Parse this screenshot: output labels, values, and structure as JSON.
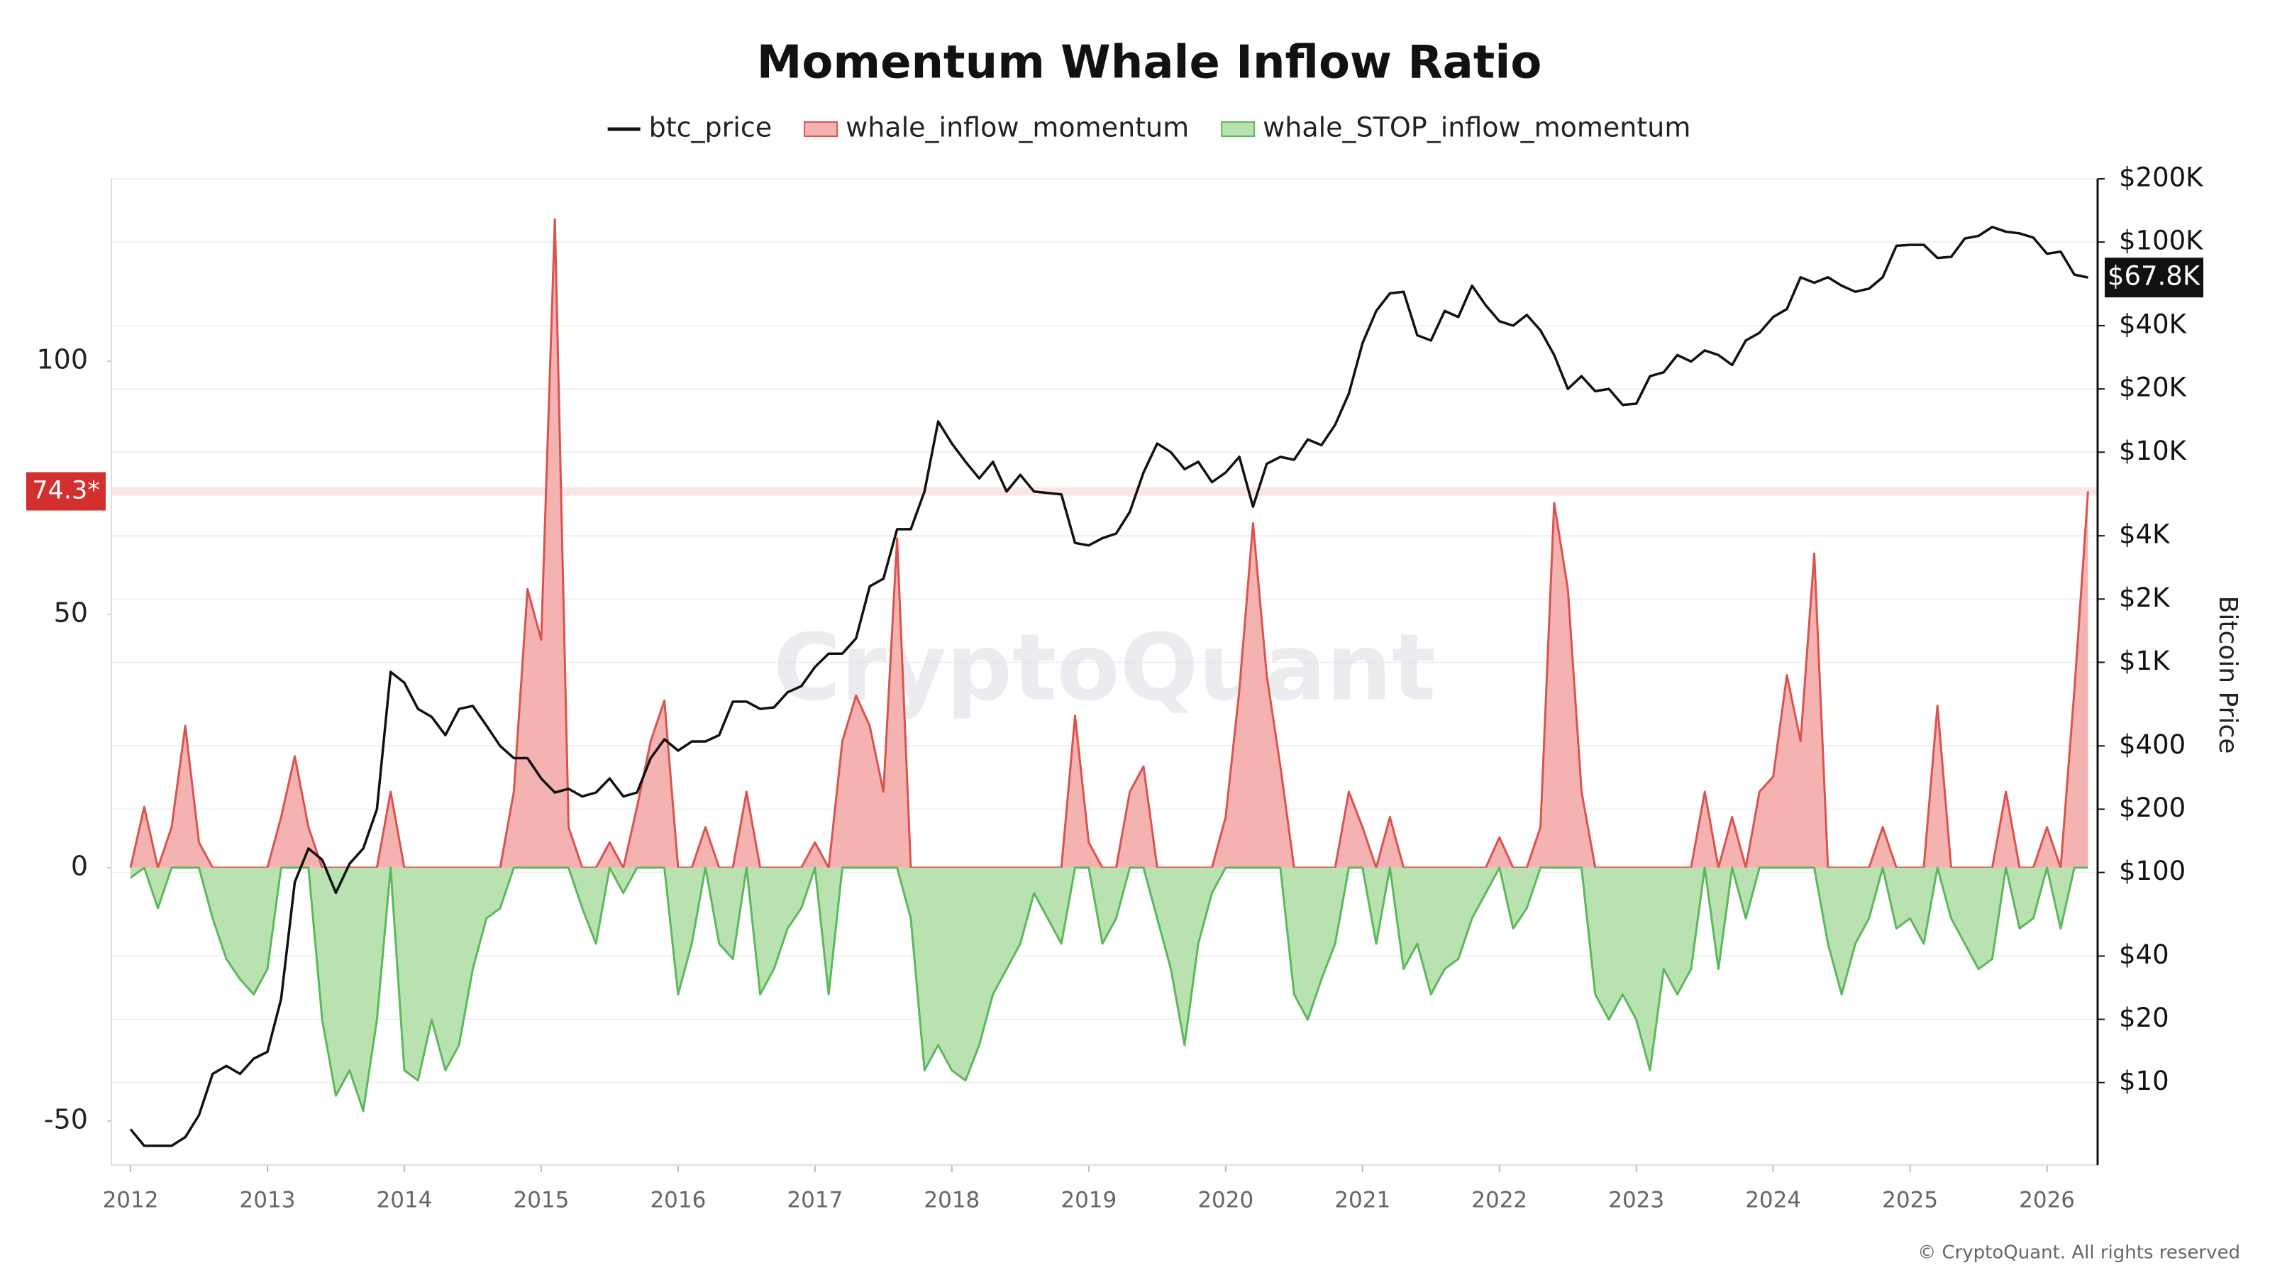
{
  "chart_data": {
    "type": "area-line",
    "title": "Momentum Whale Inflow Ratio",
    "y2label": "Bitcoin Price",
    "watermark": "CryptoQuant",
    "copyright": "© CryptoQuant. All rights reserved",
    "x": [
      2012,
      2012.1,
      2012.2,
      2012.3,
      2012.4,
      2012.5,
      2012.6,
      2012.7,
      2012.8,
      2012.9,
      2013,
      2013.1,
      2013.2,
      2013.3,
      2013.4,
      2013.5,
      2013.6,
      2013.7,
      2013.8,
      2013.9,
      2014,
      2014.1,
      2014.2,
      2014.3,
      2014.4,
      2014.5,
      2014.6,
      2014.7,
      2014.8,
      2014.9,
      2015,
      2015.1,
      2015.2,
      2015.3,
      2015.4,
      2015.5,
      2015.6,
      2015.7,
      2015.8,
      2015.9,
      2016,
      2016.1,
      2016.2,
      2016.3,
      2016.4,
      2016.5,
      2016.6,
      2016.7,
      2016.8,
      2016.9,
      2017,
      2017.1,
      2017.2,
      2017.3,
      2017.4,
      2017.5,
      2017.6,
      2017.7,
      2017.8,
      2017.9,
      2018,
      2018.1,
      2018.2,
      2018.3,
      2018.4,
      2018.5,
      2018.6,
      2018.7,
      2018.8,
      2018.9,
      2019,
      2019.1,
      2019.2,
      2019.3,
      2019.4,
      2019.5,
      2019.6,
      2019.7,
      2019.8,
      2019.9,
      2020,
      2020.1,
      2020.2,
      2020.3,
      2020.4,
      2020.5,
      2020.6,
      2020.7,
      2020.8,
      2020.9,
      2021,
      2021.1,
      2021.2,
      2021.3,
      2021.4,
      2021.5,
      2021.6,
      2021.7,
      2021.8,
      2021.9,
      2022,
      2022.1,
      2022.2,
      2022.3,
      2022.4,
      2022.5,
      2022.6,
      2022.7,
      2022.8,
      2022.9,
      2023,
      2023.1,
      2023.2,
      2023.3,
      2023.4,
      2023.5,
      2023.6,
      2023.7,
      2023.8,
      2023.9,
      2024,
      2024.1,
      2024.2,
      2024.3,
      2024.4,
      2024.5,
      2024.6,
      2024.7,
      2024.8,
      2024.9,
      2025,
      2025.1,
      2025.2,
      2025.3,
      2025.4,
      2025.5,
      2025.6,
      2025.7,
      2025.8,
      2025.9,
      2026,
      2026.1,
      2026.2,
      2026.3
    ],
    "series": [
      {
        "name": "btc_price",
        "color": "#111111",
        "axis": "y2",
        "style": "line",
        "values": [
          6,
          5,
          5,
          5,
          5.5,
          7,
          11,
          12,
          11,
          13,
          14,
          25,
          90,
          130,
          115,
          80,
          110,
          130,
          200,
          900,
          800,
          600,
          550,
          450,
          600,
          620,
          500,
          400,
          350,
          350,
          280,
          240,
          250,
          230,
          240,
          280,
          230,
          240,
          350,
          430,
          380,
          420,
          420,
          450,
          650,
          650,
          600,
          610,
          720,
          770,
          950,
          1100,
          1100,
          1300,
          2300,
          2500,
          4300,
          4300,
          6500,
          14000,
          11000,
          9000,
          7500,
          9000,
          6500,
          7800,
          6500,
          6400,
          6300,
          3700,
          3600,
          3900,
          4100,
          5200,
          8000,
          11000,
          10000,
          8300,
          9000,
          7200,
          8000,
          9500,
          5500,
          8800,
          9500,
          9200,
          11500,
          10800,
          13500,
          19000,
          33000,
          47000,
          57000,
          58000,
          36000,
          34000,
          47000,
          44000,
          62000,
          50000,
          42000,
          40000,
          45000,
          38000,
          29000,
          20000,
          23000,
          19500,
          20000,
          16800,
          17000,
          23000,
          24000,
          29000,
          27000,
          30500,
          29000,
          26000,
          34000,
          37000,
          44000,
          48000,
          68000,
          64000,
          68000,
          62000,
          58000,
          60000,
          68000,
          96000,
          97000,
          97000,
          84000,
          85000,
          104000,
          107000,
          118000,
          112000,
          110000,
          105000,
          88000,
          90000,
          70000,
          67800
        ]
      },
      {
        "name": "whale_inflow_momentum",
        "color": "#d9534f",
        "fill": "#f4b3b1",
        "style": "area",
        "values": [
          0,
          12,
          0,
          8,
          28,
          5,
          0,
          0,
          0,
          0,
          0,
          10,
          22,
          8,
          0,
          0,
          0,
          0,
          0,
          15,
          0,
          0,
          0,
          0,
          0,
          0,
          0,
          0,
          15,
          55,
          45,
          128,
          8,
          0,
          0,
          5,
          0,
          12,
          25,
          33,
          0,
          0,
          8,
          0,
          0,
          15,
          0,
          0,
          0,
          0,
          5,
          0,
          25,
          34,
          28,
          15,
          65,
          0,
          0,
          0,
          0,
          0,
          0,
          0,
          0,
          0,
          0,
          0,
          0,
          30,
          5,
          0,
          0,
          15,
          20,
          0,
          0,
          0,
          0,
          0,
          10,
          35,
          68,
          38,
          20,
          0,
          0,
          0,
          0,
          15,
          8,
          0,
          10,
          0,
          0,
          0,
          0,
          0,
          0,
          0,
          6,
          0,
          0,
          8,
          72,
          55,
          15,
          0,
          0,
          0,
          0,
          0,
          0,
          0,
          0,
          15,
          0,
          10,
          0,
          15,
          18,
          38,
          25,
          62,
          0,
          0,
          0,
          0,
          8,
          0,
          0,
          0,
          32,
          0,
          0,
          0,
          0,
          15,
          0,
          0,
          8,
          0,
          35,
          74.3
        ]
      },
      {
        "name": "whale_STOP_inflow_momentum",
        "color": "#5cb85c",
        "fill": "#b9e2b0",
        "style": "area",
        "values": [
          -2,
          0,
          -8,
          0,
          0,
          0,
          -10,
          -18,
          -22,
          -25,
          -20,
          0,
          0,
          0,
          -30,
          -45,
          -40,
          -48,
          -30,
          0,
          -40,
          -42,
          -30,
          -40,
          -35,
          -20,
          -10,
          -8,
          0,
          0,
          0,
          0,
          0,
          -8,
          -15,
          0,
          -5,
          0,
          0,
          0,
          -25,
          -15,
          0,
          -15,
          -18,
          0,
          -25,
          -20,
          -12,
          -8,
          0,
          -25,
          0,
          0,
          0,
          0,
          0,
          -10,
          -40,
          -35,
          -40,
          -42,
          -35,
          -25,
          -20,
          -15,
          -5,
          -10,
          -15,
          0,
          0,
          -15,
          -10,
          0,
          0,
          -10,
          -20,
          -35,
          -15,
          -5,
          0,
          0,
          0,
          0,
          0,
          -25,
          -30,
          -22,
          -15,
          0,
          0,
          -15,
          0,
          -20,
          -15,
          -25,
          -20,
          -18,
          -10,
          -5,
          0,
          -12,
          -8,
          0,
          0,
          0,
          0,
          -25,
          -30,
          -25,
          -30,
          -40,
          -20,
          -25,
          -20,
          0,
          -20,
          0,
          -10,
          0,
          0,
          0,
          0,
          0,
          -15,
          -25,
          -15,
          -10,
          0,
          -12,
          -10,
          -15,
          0,
          -10,
          -15,
          -20,
          -18,
          0,
          -12,
          -10,
          0,
          -12,
          0,
          0
        ]
      }
    ],
    "xlim": [
      2011.86,
      2026.37
    ],
    "xticks": [
      2012,
      2013,
      2014,
      2015,
      2016,
      2017,
      2018,
      2019,
      2020,
      2021,
      2022,
      2023,
      2024,
      2025,
      2026
    ],
    "ylim": [
      -58.7,
      136
    ],
    "yticks": [
      -50,
      0,
      50,
      100
    ],
    "y2lim": [
      4.05,
      200000
    ],
    "y2log": true,
    "y2ticks": [
      {
        "value": 200000,
        "label": "$200K"
      },
      {
        "value": 100000,
        "label": "$100K"
      },
      {
        "value": 40000,
        "label": "$40K"
      },
      {
        "value": 20000,
        "label": "$20K"
      },
      {
        "value": 10000,
        "label": "$10K"
      },
      {
        "value": 4000,
        "label": "$4K"
      },
      {
        "value": 2000,
        "label": "$2K"
      },
      {
        "value": 1000,
        "label": "$1K"
      },
      {
        "value": 400,
        "label": "$400"
      },
      {
        "value": 200,
        "label": "$200"
      },
      {
        "value": 100,
        "label": "$100"
      },
      {
        "value": 40,
        "label": "$40"
      },
      {
        "value": 20,
        "label": "$20"
      },
      {
        "value": 10,
        "label": "$10"
      }
    ],
    "grid": true,
    "markers": [
      {
        "axis": "y",
        "value": 74.3,
        "label": "74.3*",
        "color": "#d32f2f"
      },
      {
        "axis": "y2",
        "value": 67800,
        "label": "$67.8K",
        "color": "#111111"
      }
    ]
  }
}
